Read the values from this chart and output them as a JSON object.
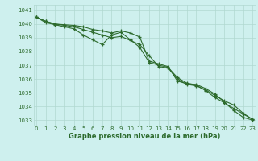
{
  "title": "Graphe pression niveau de la mer (hPa)",
  "bg_color": "#cef0ee",
  "grid_color": "#b0d8d0",
  "line_color": "#2d6b2d",
  "hours": [
    0,
    1,
    2,
    3,
    4,
    5,
    6,
    7,
    8,
    9,
    10,
    11,
    12,
    13,
    14,
    15,
    16,
    17,
    18,
    19,
    20,
    21,
    22,
    23
  ],
  "line1": [
    1040.5,
    1040.2,
    1040.0,
    1039.9,
    1039.8,
    1039.6,
    1039.4,
    1039.2,
    1039.0,
    1039.1,
    1038.8,
    1038.5,
    1037.7,
    1036.9,
    1036.8,
    1036.0,
    1035.6,
    1035.5,
    1035.2,
    1034.8,
    1034.4,
    1034.1,
    1033.5,
    1033.05
  ],
  "line2": [
    1040.5,
    1040.1,
    1039.95,
    1039.8,
    1039.65,
    1039.2,
    1038.85,
    1038.5,
    1039.2,
    1039.4,
    1038.85,
    1038.3,
    1037.2,
    1037.0,
    1036.85,
    1036.1,
    1035.7,
    1035.55,
    1035.15,
    1034.65,
    1034.25,
    1033.85,
    1033.45,
    1033.05
  ],
  "line3": [
    1040.5,
    1040.2,
    1040.0,
    1039.95,
    1039.9,
    1039.8,
    1039.6,
    1039.5,
    1039.35,
    1039.5,
    1039.35,
    1039.05,
    1037.3,
    1037.1,
    1036.9,
    1035.85,
    1035.65,
    1035.6,
    1035.3,
    1034.9,
    1034.3,
    1033.7,
    1033.2,
    1033.0
  ],
  "ylim_min": 1032.6,
  "ylim_max": 1041.4,
  "yticks": [
    1033,
    1034,
    1035,
    1036,
    1037,
    1038,
    1039,
    1040,
    1041
  ],
  "xlim_min": -0.3,
  "xlim_max": 23.3,
  "title_fontsize": 6.0,
  "tick_fontsize": 5.0
}
